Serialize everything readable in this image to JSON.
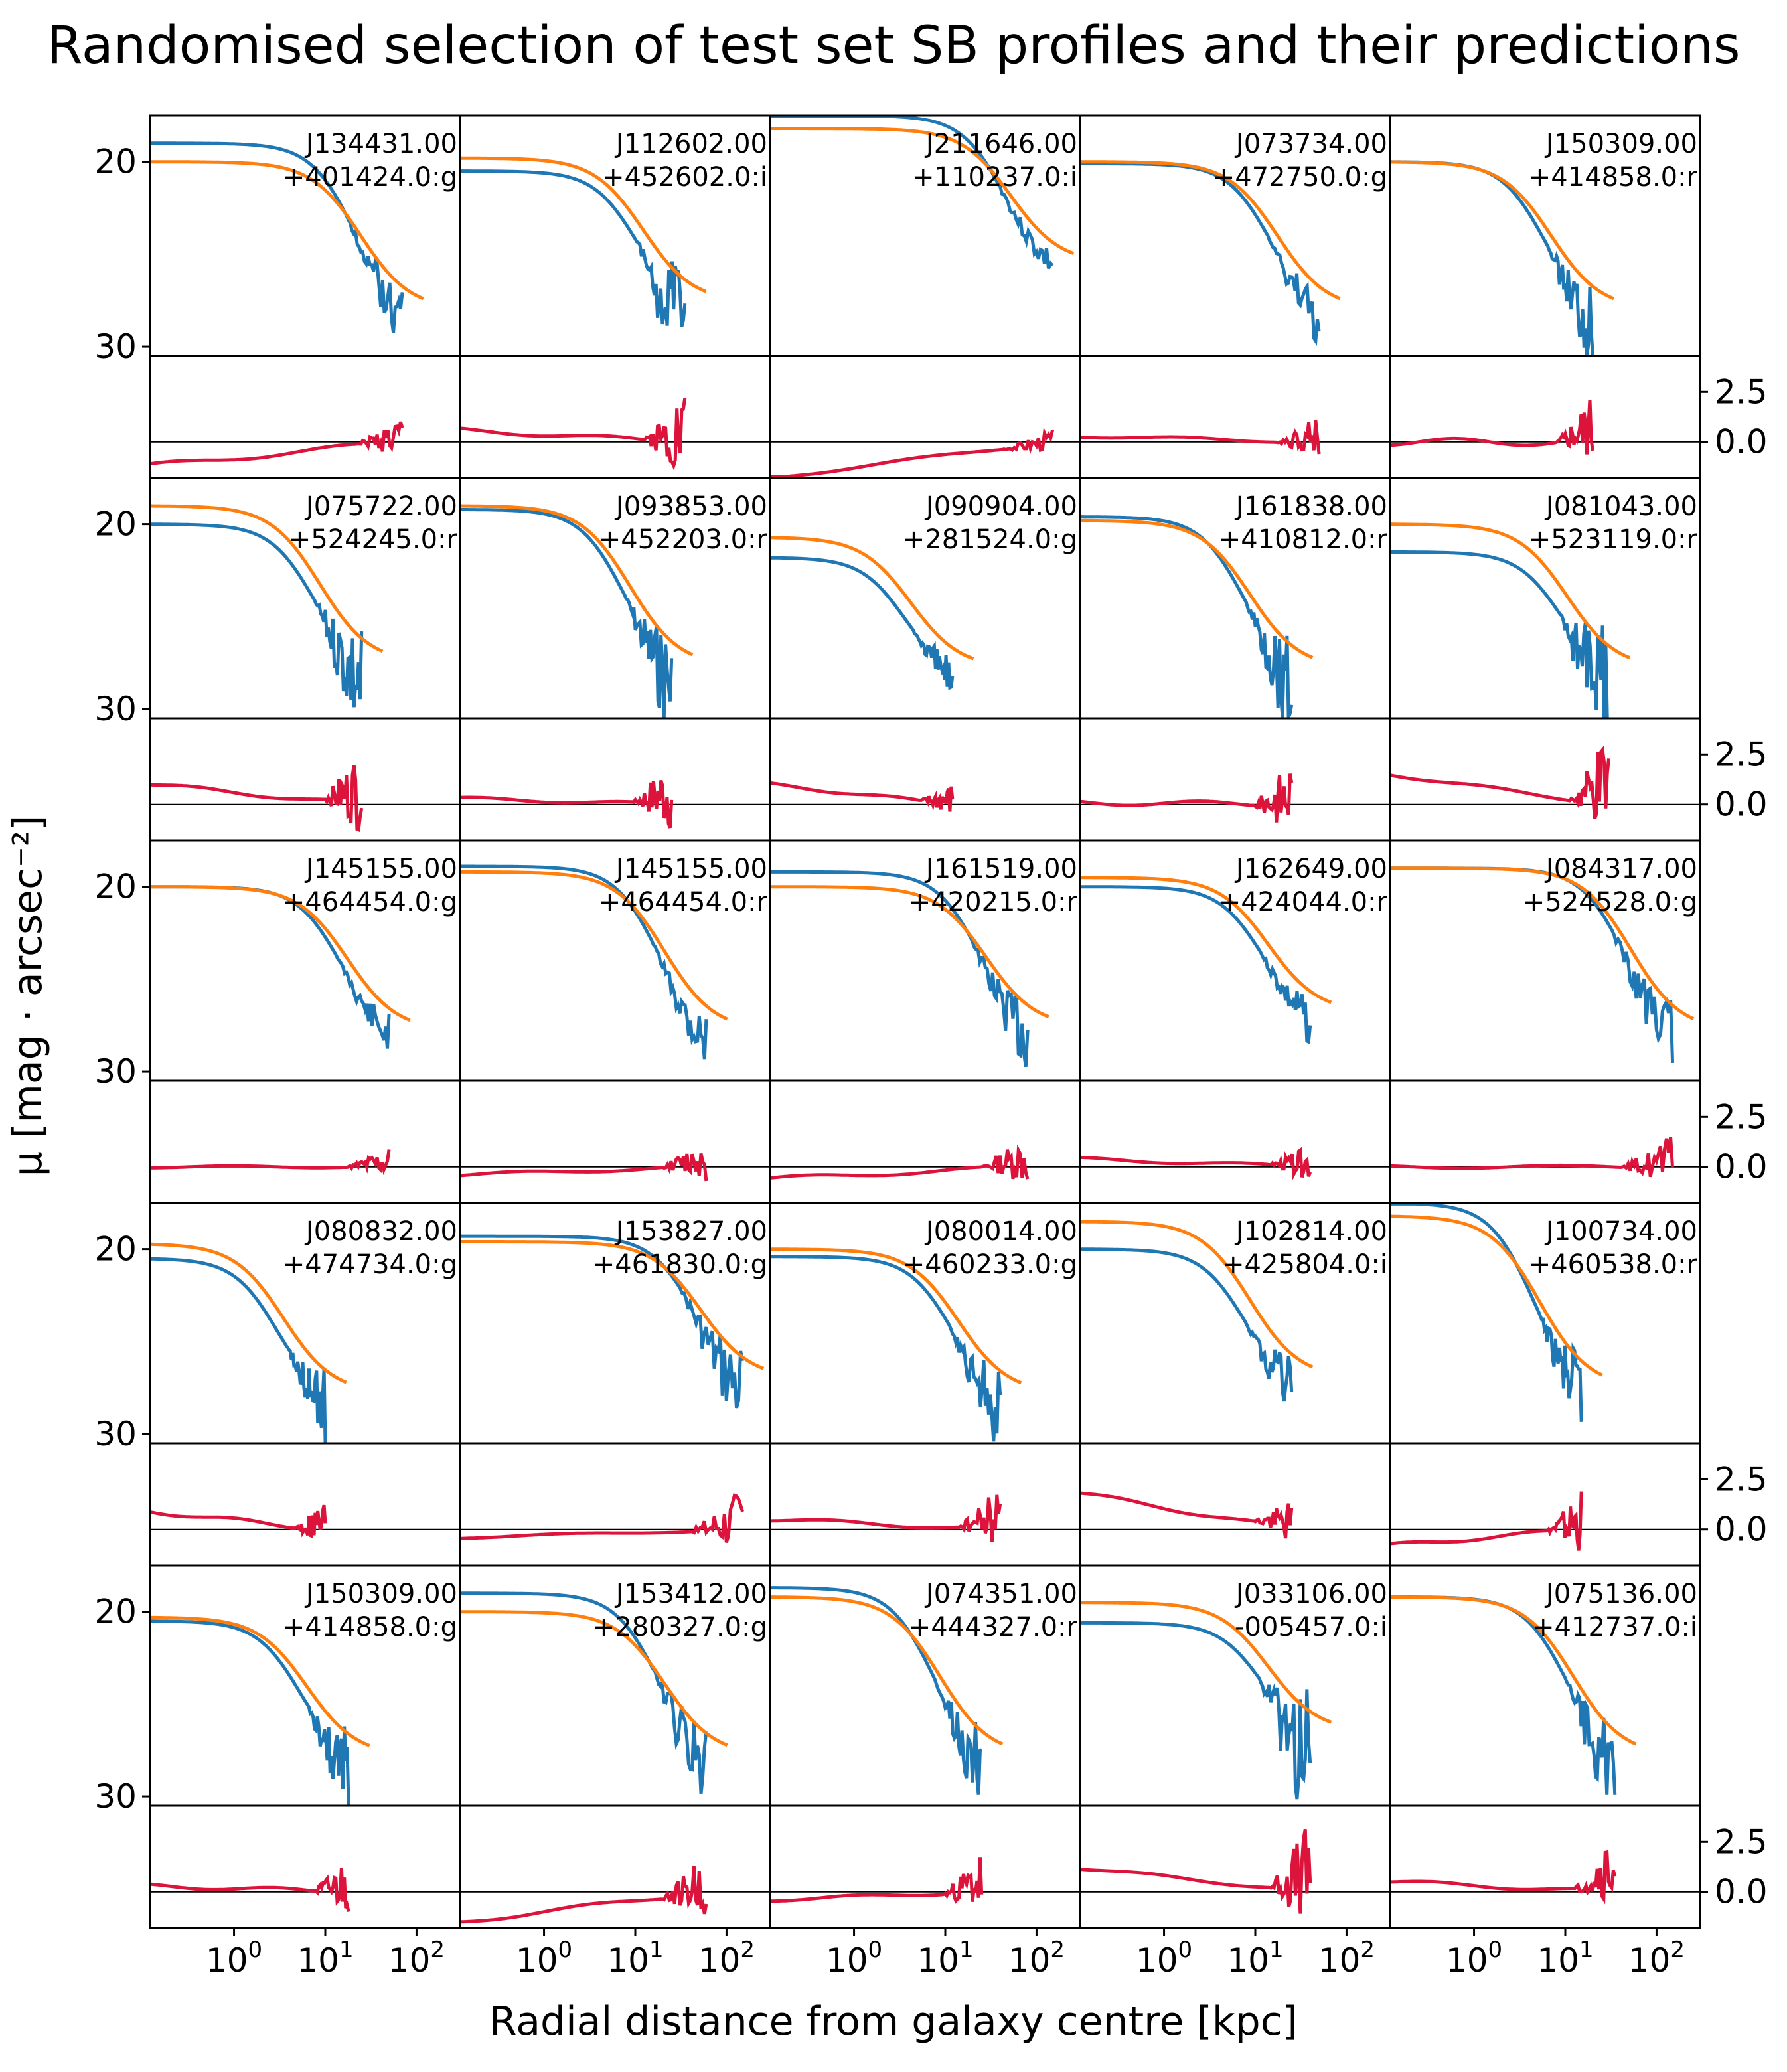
{
  "chart_data": {
    "type": "line",
    "title": "Randomised selection of test set SB profiles and their predictions",
    "xlabel": "Radial distance from galaxy centre [kpc]",
    "ylabel": "μ [mag · arcsec⁻²]",
    "x_scale": "log",
    "x_tick_values": [
      1,
      10,
      100
    ],
    "x_ticks": [
      {
        "base": "10",
        "exp": "0"
      },
      {
        "base": "10",
        "exp": "1"
      },
      {
        "base": "10",
        "exp": "2"
      }
    ],
    "x_range": [
      0.12,
      300
    ],
    "y_range_inverted": [
      17.5,
      30.5
    ],
    "y_ticks": [
      "20",
      "30"
    ],
    "y_tick_values": [
      20,
      30
    ],
    "residual_ticks": [
      "2.5",
      "0.0"
    ],
    "residual_tick_values": [
      2.5,
      0.0
    ],
    "residual_range": [
      -1.8,
      4.3
    ],
    "colors": {
      "observed": "#1f77b4",
      "predicted": "#ff7f0e",
      "residual": "#dc143c"
    },
    "panels": [
      {
        "id_line1": "J134431.00",
        "id_line2": "+401424.0:g",
        "end": 70,
        "flat": 1.0,
        "mu0o": 19.0,
        "mu0p": 20.0,
        "mu_end": 28.0,
        "dev": 0.5,
        "res_start": -1.2,
        "noise": 1.0,
        "tail": 10,
        "seed": 1
      },
      {
        "id_line1": "J112602.00",
        "id_line2": "+452602.0:i",
        "end": 35,
        "flat": 0.8,
        "mu0o": 20.5,
        "mu0p": 19.8,
        "mu_end": 27.6,
        "dev": 0.4,
        "res_start": 0.6,
        "noise": 2.2,
        "tail": 6,
        "seed": 2
      },
      {
        "id_line1": "J211646.00",
        "id_line2": "+110237.0:i",
        "end": 150,
        "flat": 0.4,
        "mu0o": 17.5,
        "mu0p": 18.2,
        "mu_end": 25.5,
        "dev": 0.3,
        "res_start": -1.8,
        "noise": 0.5,
        "tail": 25,
        "seed": 3
      },
      {
        "id_line1": "J073734.00",
        "id_line2": "+472750.0:g",
        "end": 50,
        "flat": 1.5,
        "mu0o": 20.1,
        "mu0p": 20.0,
        "mu_end": 28.0,
        "dev": 0.3,
        "res_start": 0.3,
        "noise": 1.0,
        "tail": 10,
        "seed": 4
      },
      {
        "id_line1": "J150309.00",
        "id_line2": "+414858.0:r",
        "end": 20,
        "flat": 1.5,
        "mu0o": 20.0,
        "mu0p": 20.0,
        "mu_end": 28.0,
        "dev": 0.7,
        "res_start": 0.0,
        "noise": 1.6,
        "tail": 4,
        "seed": 5
      },
      {
        "id_line1": "J075722.00",
        "id_line2": "+524245.0:r",
        "end": 25,
        "flat": 0.5,
        "mu0o": 20.0,
        "mu0p": 19.0,
        "mu_end": 27.5,
        "dev": 0.4,
        "res_start": 1.0,
        "noise": 2.0,
        "tail": 8,
        "seed": 6
      },
      {
        "id_line1": "J093853.00",
        "id_line2": "+452203.0:r",
        "end": 25,
        "flat": 0.8,
        "mu0o": 19.2,
        "mu0p": 19.0,
        "mu_end": 27.7,
        "dev": 0.3,
        "res_start": 0.3,
        "noise": 1.8,
        "tail": 5,
        "seed": 7
      },
      {
        "id_line1": "J090904.00",
        "id_line2": "+281524.0:g",
        "end": 12,
        "flat": 0.6,
        "mu0o": 21.8,
        "mu0p": 20.7,
        "mu_end": 27.8,
        "dev": 0.3,
        "res_start": 1.0,
        "noise": 0.8,
        "tail": 3,
        "seed": 8
      },
      {
        "id_line1": "J161838.00",
        "id_line2": "+410812.0:r",
        "end": 25,
        "flat": 0.5,
        "mu0o": 19.6,
        "mu0p": 19.8,
        "mu_end": 27.8,
        "dev": 0.5,
        "res_start": 0.1,
        "noise": 1.8,
        "tail": 4,
        "seed": 9
      },
      {
        "id_line1": "J081043.00",
        "id_line2": "+523119.0:r",
        "end": 30,
        "flat": 0.6,
        "mu0o": 21.5,
        "mu0p": 20.0,
        "mu_end": 27.8,
        "dev": 0.3,
        "res_start": 1.5,
        "noise": 2.5,
        "tail": 12,
        "seed": 10
      },
      {
        "id_line1": "J145155.00",
        "id_line2": "+464454.0:g",
        "end": 50,
        "flat": 0.5,
        "mu0o": 20.0,
        "mu0p": 20.0,
        "mu_end": 27.8,
        "dev": 0.2,
        "res_start": 0.0,
        "noise": 0.7,
        "tail": 5,
        "seed": 11
      },
      {
        "id_line1": "J145155.00",
        "id_line2": "+464454.0:r",
        "end": 60,
        "flat": 0.7,
        "mu0o": 18.9,
        "mu0p": 19.2,
        "mu_end": 27.8,
        "dev": 0.3,
        "res_start": -0.4,
        "noise": 1.0,
        "tail": 5,
        "seed": 12
      },
      {
        "id_line1": "J161519.00",
        "id_line2": "+420215.0:r",
        "end": 80,
        "flat": 1.2,
        "mu0o": 19.2,
        "mu0p": 20.0,
        "mu_end": 27.6,
        "dev": 0.4,
        "res_start": -0.6,
        "noise": 1.2,
        "tail": 12,
        "seed": 13
      },
      {
        "id_line1": "J162649.00",
        "id_line2": "+424044.0:r",
        "end": 40,
        "flat": 0.5,
        "mu0o": 20.0,
        "mu0p": 19.5,
        "mu_end": 26.8,
        "dev": 0.3,
        "res_start": 0.4,
        "noise": 0.8,
        "tail": 10,
        "seed": 14
      },
      {
        "id_line1": "J084317.00",
        "id_line2": "+524528.0:g",
        "end": 150,
        "flat": 1.0,
        "mu0o": 19.0,
        "mu0p": 19.0,
        "mu_end": 27.8,
        "dev": 0.3,
        "res_start": 0.0,
        "noise": 1.2,
        "tail": 8,
        "seed": 15
      },
      {
        "id_line1": "J080832.00",
        "id_line2": "+474734.0:g",
        "end": 10,
        "flat": 0.4,
        "mu0o": 20.5,
        "mu0p": 19.7,
        "mu_end": 27.8,
        "dev": 0.4,
        "res_start": 0.9,
        "noise": 1.2,
        "tail": 2,
        "seed": 16
      },
      {
        "id_line1": "J153827.00",
        "id_line2": "+461830.0:g",
        "end": 150,
        "flat": 0.5,
        "mu0o": 19.3,
        "mu0p": 19.6,
        "mu_end": 27.0,
        "dev": 0.2,
        "res_start": -0.4,
        "noise": 1.6,
        "tail": 40,
        "seed": 17
      },
      {
        "id_line1": "J080014.00",
        "id_line2": "+460233.0:g",
        "end": 40,
        "flat": 1.0,
        "mu0o": 20.4,
        "mu0p": 20.0,
        "mu_end": 27.8,
        "dev": 0.4,
        "res_start": 0.5,
        "noise": 1.5,
        "tail": 10,
        "seed": 18
      },
      {
        "id_line1": "J102814.00",
        "id_line2": "+425804.0:i",
        "end": 25,
        "flat": 1.5,
        "mu0o": 20.0,
        "mu0p": 18.5,
        "mu_end": 27.0,
        "dev": 0.4,
        "res_start": 1.8,
        "noise": 1.0,
        "tail": 4,
        "seed": 19
      },
      {
        "id_line1": "J100734.00",
        "id_line2": "+460538.0:r",
        "end": 15,
        "flat": 0.4,
        "mu0o": 17.5,
        "mu0p": 18.2,
        "mu_end": 27.5,
        "dev": 0.4,
        "res_start": -0.8,
        "noise": 1.5,
        "tail": 3,
        "seed": 20
      },
      {
        "id_line1": "J150309.00",
        "id_line2": "+414858.0:g",
        "end": 18,
        "flat": 1.5,
        "mu0o": 20.5,
        "mu0p": 20.3,
        "mu_end": 27.8,
        "dev": 0.4,
        "res_start": 0.3,
        "noise": 1.4,
        "tail": 3,
        "seed": 21
      },
      {
        "id_line1": "J153412.00",
        "id_line2": "+280327.0:g",
        "end": 60,
        "flat": 1.0,
        "mu0o": 19.0,
        "mu0p": 20.0,
        "mu_end": 27.8,
        "dev": 0.4,
        "res_start": -1.5,
        "noise": 1.5,
        "tail": 6,
        "seed": 22
      },
      {
        "id_line1": "J074351.00",
        "id_line2": "+444327.0:r",
        "end": 25,
        "flat": 0.3,
        "mu0o": 18.7,
        "mu0p": 19.2,
        "mu_end": 27.8,
        "dev": 0.3,
        "res_start": -0.4,
        "noise": 1.5,
        "tail": 5,
        "seed": 23
      },
      {
        "id_line1": "J033106.00",
        "id_line2": "-005457.0:i",
        "end": 40,
        "flat": 0.5,
        "mu0o": 20.6,
        "mu0p": 19.5,
        "mu_end": 26.5,
        "dev": 0.3,
        "res_start": 1.2,
        "noise": 2.5,
        "tail": 20,
        "seed": 24
      },
      {
        "id_line1": "J075136.00",
        "id_line2": "+412737.0:i",
        "end": 35,
        "flat": 0.7,
        "mu0o": 19.2,
        "mu0p": 19.2,
        "mu_end": 27.8,
        "dev": 0.4,
        "res_start": 0.5,
        "noise": 1.8,
        "tail": 5,
        "seed": 25
      }
    ]
  }
}
